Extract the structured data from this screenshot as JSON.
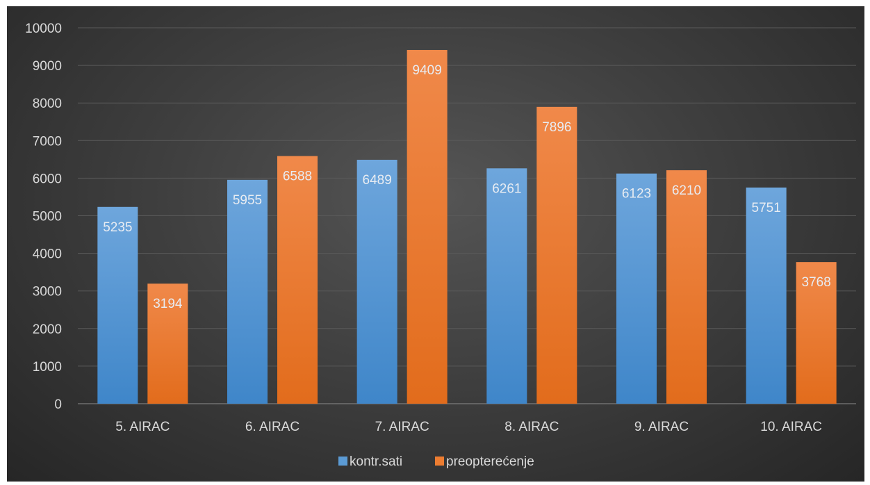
{
  "chart_data": {
    "type": "bar",
    "categories": [
      "5. AIRAC",
      "6. AIRAC",
      "7. AIRAC",
      "8. AIRAC",
      "9. AIRAC",
      "10. AIRAC"
    ],
    "series": [
      {
        "name": "kontr.sati",
        "values": [
          5235,
          5955,
          6489,
          6261,
          6123,
          5751
        ],
        "color": "#5b9bd5"
      },
      {
        "name": "preopterećenje",
        "values": [
          3194,
          6588,
          9409,
          7896,
          6210,
          3768
        ],
        "color": "#ed7d31"
      }
    ],
    "ylim": [
      0,
      10000
    ],
    "yticks": [
      "0",
      "1000",
      "2000",
      "3000",
      "4000",
      "5000",
      "6000",
      "7000",
      "8000",
      "9000",
      "10000"
    ],
    "grid": true,
    "legend_position": "bottom",
    "background": "#404040",
    "title": "",
    "xlabel": "",
    "ylabel": ""
  }
}
